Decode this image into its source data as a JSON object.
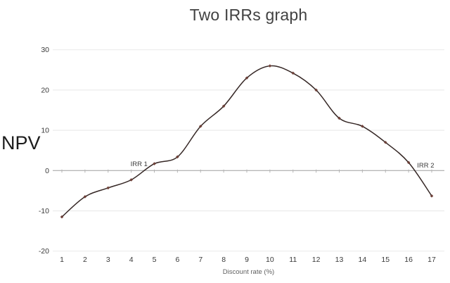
{
  "chart_data": {
    "type": "line",
    "title": "Two IRRs graph",
    "xlabel": "Discount rate (%)",
    "ylabel": "NPV",
    "x": [
      1,
      2,
      3,
      4,
      5,
      6,
      7,
      8,
      9,
      10,
      11,
      12,
      13,
      14,
      15,
      16,
      17
    ],
    "series": [
      {
        "name": "NPV",
        "values": [
          -11.5,
          -6.5,
          -4.3,
          -2.3,
          1.7,
          3.4,
          11,
          16,
          23,
          26,
          24.2,
          20,
          13,
          11,
          7,
          2,
          -6.3
        ]
      }
    ],
    "ylim": [
      -20,
      30
    ],
    "ytick_step": 10,
    "yticks": [
      30,
      20,
      10,
      0,
      -10,
      -20
    ],
    "grid": "horizontal",
    "legend": "none",
    "annotations": [
      {
        "label": "IRR 1",
        "x": 4.71,
        "y": 1.1,
        "anchor": "end"
      },
      {
        "label": "IRR 2",
        "x": 16.37,
        "y": 0.75,
        "anchor": "start"
      }
    ],
    "colors": {
      "line": "#352725",
      "marker": "#6e4038",
      "grid": "#ebebeb",
      "zero_axis": "#9e9e9e",
      "zero_tick": "#b5b5b5",
      "tick_label": "#3a3a3a",
      "title": "#424242",
      "axis_title": "#5f5f5f"
    }
  }
}
